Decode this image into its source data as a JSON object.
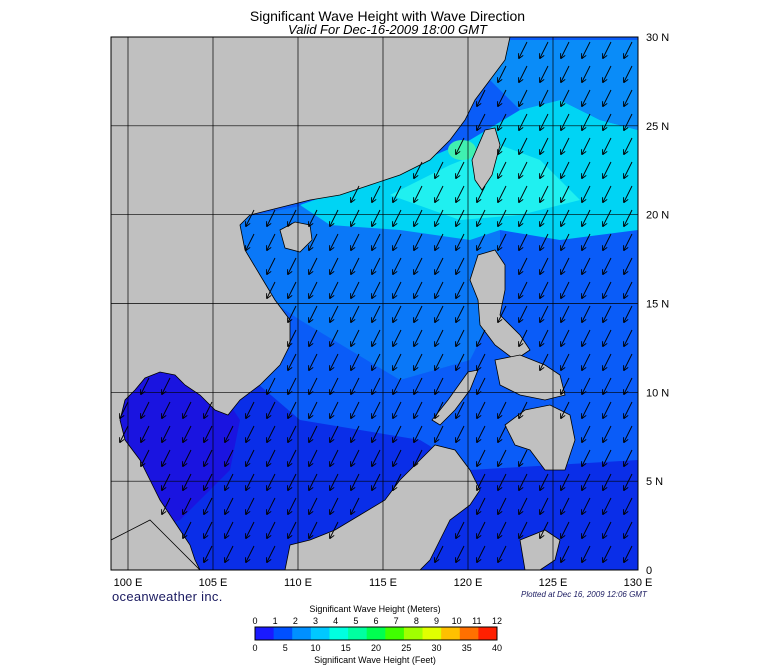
{
  "map": {
    "title": "Significant Wave Height with Wave Direction",
    "subtitle": "Valid For Dec-16-2009 18:00 GMT",
    "lon_labels": [
      "100 E",
      "105 E",
      "110 E",
      "115 E",
      "120 E",
      "125 E",
      "130 E"
    ],
    "lat_labels": [
      "0",
      "5 N",
      "10 N",
      "15 N",
      "20 N",
      "25 N",
      "30 N"
    ],
    "lon_range": [
      99,
      130
    ],
    "lat_range": [
      0,
      30
    ],
    "brand": "oceanweather inc.",
    "plotted": "Plotted at Dec 16, 2009 12:06 GMT",
    "wave_direction": "arrows pointing south-west",
    "colors": {
      "land": "#c0c0c0",
      "sea_blue": "#0a3cf0",
      "sea_cyan": "#00e8f0",
      "grid": "#000000"
    }
  },
  "colorbar": {
    "meters_title": "Significant Wave Height (Meters)",
    "meters_ticks": [
      "0",
      "1",
      "2",
      "3",
      "4",
      "5",
      "6",
      "7",
      "8",
      "9",
      "10",
      "11",
      "12"
    ],
    "feet_title": "Significant Wave Height (Feet)",
    "feet_ticks": [
      "0",
      "5",
      "10",
      "15",
      "20",
      "25",
      "30",
      "35",
      "40"
    ],
    "colors": [
      "#1a1aff",
      "#0050ff",
      "#0090ff",
      "#00c8ff",
      "#00ffe0",
      "#00ffa0",
      "#00ff50",
      "#40ff00",
      "#a0ff00",
      "#e0ff00",
      "#ffc000",
      "#ff7000",
      "#ff2000"
    ]
  }
}
